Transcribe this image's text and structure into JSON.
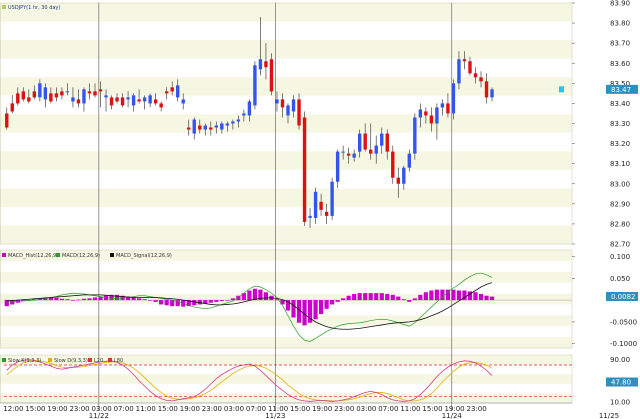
{
  "window": {
    "panels": {
      "price": {
        "legend": "USDJPY(1 hr, 30 day)"
      },
      "macd": {
        "legends": [
          "MACD_Hist(12,26,9)",
          "MACD(12,26,9)",
          "MACD_Signal(12,26,9)"
        ]
      },
      "stoch": {
        "legends": [
          "Slow K(9,3,3)",
          "Slow D(9,3,3)",
          "L20",
          "L80"
        ]
      }
    },
    "bottom_left": "12:00"
  },
  "chart_data": [
    {
      "type": "candlestick",
      "name": "USDJPY(1 hr, 30 day)",
      "ylim": [
        82.7,
        83.9
      ],
      "yticks": [
        "83.90",
        "83.80",
        "83.70",
        "83.60",
        "83.50",
        "83.40",
        "83.30",
        "83.20",
        "83.10",
        "83.00",
        "82.90",
        "82.80",
        "82.70"
      ],
      "current_label": "83.47",
      "date_labels": [
        {
          "label": "11/22",
          "idx": 17.2
        },
        {
          "label": "11/23",
          "idx": 49.2
        },
        {
          "label": "11/24",
          "idx": 81.2
        },
        {
          "label": "11/25",
          "idx": 109.7
        }
      ],
      "time_labels": [
        "12:00",
        "15:00",
        "19:00",
        "23:00",
        "03:00",
        "07:00",
        "11:00",
        "15:00",
        "19:00",
        "23:00",
        "03:00",
        "07:00",
        "11:00",
        "15:00",
        "19:00",
        "23:00",
        "03:00",
        "07:00",
        "11:00",
        "15:00",
        "19:00",
        "23:00"
      ],
      "candles": [
        [
          83.35,
          83.38,
          83.27,
          83.28
        ],
        [
          83.4,
          83.44,
          83.35,
          83.36
        ],
        [
          83.45,
          83.48,
          83.39,
          83.4
        ],
        [
          83.46,
          83.48,
          83.41,
          83.42
        ],
        [
          83.43,
          83.47,
          83.4,
          83.41
        ],
        [
          83.46,
          83.49,
          83.42,
          83.43
        ],
        [
          83.43,
          83.52,
          83.41,
          83.5
        ],
        [
          83.42,
          83.5,
          83.38,
          83.48
        ],
        [
          83.45,
          83.48,
          83.4,
          83.41
        ],
        [
          83.45,
          83.48,
          83.41,
          83.43
        ],
        [
          83.46,
          83.48,
          83.42,
          83.44
        ],
        [
          83.46,
          83.5,
          83.44,
          83.46
        ],
        [
          83.41,
          83.48,
          83.38,
          83.43
        ],
        [
          83.42,
          83.47,
          83.38,
          83.4
        ],
        [
          83.4,
          83.48,
          83.36,
          83.47
        ],
        [
          83.46,
          83.5,
          83.42,
          83.45
        ],
        [
          83.46,
          83.5,
          83.43,
          83.44
        ],
        [
          83.47,
          83.51,
          83.38,
          83.46
        ],
        [
          83.43,
          83.47,
          83.36,
          83.44
        ],
        [
          83.43,
          83.44,
          83.37,
          83.39
        ],
        [
          83.43,
          83.45,
          83.4,
          83.41
        ],
        [
          83.43,
          83.45,
          83.38,
          83.39
        ],
        [
          83.42,
          83.46,
          83.38,
          83.43
        ],
        [
          83.39,
          83.45,
          83.36,
          83.44
        ],
        [
          83.42,
          83.47,
          83.4,
          83.41
        ],
        [
          83.41,
          83.44,
          83.37,
          83.43
        ],
        [
          83.4,
          83.45,
          83.38,
          83.44
        ],
        [
          83.42,
          83.45,
          83.39,
          83.4
        ],
        [
          83.4,
          83.41,
          83.36,
          83.38
        ],
        [
          83.46,
          83.48,
          83.42,
          83.45
        ],
        [
          83.48,
          83.51,
          83.44,
          83.46
        ],
        [
          83.43,
          83.52,
          83.41,
          83.49
        ],
        [
          83.4,
          83.45,
          83.37,
          83.42
        ],
        [
          83.28,
          83.32,
          83.24,
          83.27
        ],
        [
          83.25,
          83.33,
          83.22,
          83.32
        ],
        [
          83.29,
          83.32,
          83.25,
          83.27
        ],
        [
          83.27,
          83.3,
          83.24,
          83.29
        ],
        [
          83.28,
          83.31,
          83.24,
          83.27
        ],
        [
          83.28,
          83.31,
          83.25,
          83.29
        ],
        [
          83.27,
          83.31,
          83.25,
          83.3
        ],
        [
          83.29,
          83.31,
          83.26,
          83.3
        ],
        [
          83.3,
          83.32,
          83.27,
          83.31
        ],
        [
          83.31,
          83.34,
          83.28,
          83.32
        ],
        [
          83.34,
          83.37,
          83.31,
          83.35
        ],
        [
          83.34,
          83.42,
          83.31,
          83.41
        ],
        [
          83.39,
          83.61,
          83.37,
          83.59
        ],
        [
          83.57,
          83.83,
          83.54,
          83.62
        ],
        [
          83.61,
          83.7,
          83.52,
          83.58
        ],
        [
          83.62,
          83.65,
          83.44,
          83.46
        ],
        [
          83.4,
          83.46,
          83.36,
          83.42
        ],
        [
          83.42,
          83.45,
          83.33,
          83.38
        ],
        [
          83.34,
          83.4,
          83.3,
          83.39
        ],
        [
          83.36,
          83.44,
          83.33,
          83.42
        ],
        [
          83.42,
          83.45,
          83.27,
          83.29
        ],
        [
          83.33,
          83.36,
          82.79,
          82.81
        ],
        [
          82.83,
          82.88,
          82.78,
          82.84
        ],
        [
          82.83,
          82.98,
          82.8,
          82.96
        ],
        [
          82.91,
          82.95,
          82.84,
          82.87
        ],
        [
          82.86,
          82.9,
          82.8,
          82.84
        ],
        [
          82.84,
          83.03,
          82.82,
          83.01
        ],
        [
          83.01,
          83.17,
          82.98,
          83.16
        ],
        [
          83.16,
          83.19,
          83.12,
          83.16
        ],
        [
          83.15,
          83.18,
          83.1,
          83.14
        ],
        [
          83.13,
          83.17,
          83.11,
          83.15
        ],
        [
          83.16,
          83.27,
          83.13,
          83.25
        ],
        [
          83.25,
          83.3,
          83.16,
          83.17
        ],
        [
          83.17,
          83.3,
          83.12,
          83.15
        ],
        [
          83.15,
          83.24,
          83.1,
          83.19
        ],
        [
          83.19,
          83.28,
          83.15,
          83.25
        ],
        [
          83.25,
          83.27,
          83.12,
          83.16
        ],
        [
          83.16,
          83.19,
          83.0,
          83.03
        ],
        [
          83.03,
          83.08,
          82.93,
          83.0
        ],
        [
          83.0,
          83.09,
          82.97,
          83.08
        ],
        [
          83.08,
          83.17,
          83.06,
          83.15
        ],
        [
          83.15,
          83.35,
          83.12,
          83.33
        ],
        [
          83.33,
          83.4,
          83.28,
          83.37
        ],
        [
          83.36,
          83.38,
          83.3,
          83.34
        ],
        [
          83.34,
          83.38,
          83.26,
          83.3
        ],
        [
          83.3,
          83.4,
          83.22,
          83.38
        ],
        [
          83.38,
          83.42,
          83.34,
          83.4
        ],
        [
          83.4,
          83.45,
          83.33,
          83.35
        ],
        [
          83.35,
          83.52,
          83.32,
          83.5
        ],
        [
          83.5,
          83.66,
          83.47,
          83.62
        ],
        [
          83.62,
          83.66,
          83.57,
          83.61
        ],
        [
          83.61,
          83.63,
          83.54,
          83.55
        ],
        [
          83.55,
          83.58,
          83.5,
          83.53
        ],
        [
          83.53,
          83.56,
          83.48,
          83.51
        ],
        [
          83.51,
          83.55,
          83.4,
          83.43
        ],
        [
          83.43,
          83.48,
          83.41,
          83.47
        ]
      ]
    },
    {
      "type": "bar+line",
      "name": "MACD",
      "ylim": [
        -0.11,
        0.115
      ],
      "yticks": [
        "0.100",
        "0.050",
        "0.0082",
        "-0.0500",
        "-0.1000"
      ],
      "histogram": [
        -0.014,
        -0.01,
        -0.006,
        -0.002,
        0.0,
        0.002,
        0.004,
        0.006,
        0.006,
        0.005,
        0.003,
        0.002,
        0.0,
        0.001,
        0.003,
        0.004,
        0.006,
        0.008,
        0.01,
        0.012,
        0.012,
        0.01,
        0.008,
        0.006,
        0.004,
        0.002,
        0.0,
        -0.004,
        -0.01,
        -0.012,
        -0.014,
        -0.014,
        -0.015,
        -0.014,
        -0.012,
        -0.01,
        -0.008,
        -0.006,
        -0.004,
        -0.002,
        0.0,
        0.004,
        0.01,
        0.016,
        0.022,
        0.026,
        0.024,
        0.018,
        0.01,
        0.002,
        -0.01,
        -0.024,
        -0.04,
        -0.052,
        -0.058,
        -0.052,
        -0.044,
        -0.032,
        -0.02,
        -0.01,
        -0.004,
        0.004,
        0.01,
        0.014,
        0.016,
        0.016,
        0.016,
        0.016,
        0.016,
        0.014,
        0.012,
        0.008,
        0.002,
        -0.004,
        0.004,
        0.012,
        0.018,
        0.022,
        0.024,
        0.024,
        0.024,
        0.024,
        0.022,
        0.022,
        0.02,
        0.018,
        0.014,
        0.01,
        0.008
      ],
      "macd": [
        -0.005,
        -0.004,
        -0.003,
        -0.002,
        -0.001,
        0.0,
        0.002,
        0.004,
        0.006,
        0.008,
        0.012,
        0.014,
        0.016,
        0.015,
        0.014,
        0.012,
        0.01,
        0.008,
        0.006,
        0.004,
        0.004,
        0.005,
        0.006,
        0.008,
        0.01,
        0.01,
        0.008,
        0.006,
        0.004,
        0.002,
        0.0,
        -0.004,
        -0.008,
        -0.012,
        -0.016,
        -0.018,
        -0.02,
        -0.018,
        -0.014,
        -0.01,
        -0.006,
        -0.002,
        0.006,
        0.016,
        0.026,
        0.032,
        0.03,
        0.024,
        0.016,
        0.006,
        -0.012,
        -0.036,
        -0.06,
        -0.08,
        -0.092,
        -0.095,
        -0.088,
        -0.08,
        -0.072,
        -0.066,
        -0.06,
        -0.056,
        -0.054,
        -0.053,
        -0.052,
        -0.05,
        -0.047,
        -0.045,
        -0.044,
        -0.045,
        -0.048,
        -0.052,
        -0.056,
        -0.06,
        -0.052,
        -0.04,
        -0.028,
        -0.016,
        -0.004,
        0.008,
        0.018,
        0.028,
        0.036,
        0.046,
        0.054,
        0.06,
        0.062,
        0.058,
        0.052
      ],
      "signal": [
        -0.002,
        -0.001,
        0.0,
        0.001,
        0.002,
        0.003,
        0.004,
        0.005,
        0.006,
        0.007,
        0.008,
        0.009,
        0.01,
        0.011,
        0.012,
        0.012,
        0.012,
        0.012,
        0.011,
        0.01,
        0.009,
        0.008,
        0.007,
        0.006,
        0.006,
        0.006,
        0.006,
        0.006,
        0.005,
        0.004,
        0.003,
        0.002,
        0.0,
        -0.002,
        -0.004,
        -0.006,
        -0.008,
        -0.01,
        -0.011,
        -0.011,
        -0.01,
        -0.009,
        -0.007,
        -0.004,
        -0.001,
        0.002,
        0.004,
        0.005,
        0.005,
        0.004,
        0.001,
        -0.004,
        -0.012,
        -0.022,
        -0.032,
        -0.042,
        -0.05,
        -0.056,
        -0.061,
        -0.064,
        -0.066,
        -0.067,
        -0.067,
        -0.066,
        -0.065,
        -0.063,
        -0.061,
        -0.059,
        -0.057,
        -0.055,
        -0.053,
        -0.052,
        -0.051,
        -0.05,
        -0.048,
        -0.045,
        -0.041,
        -0.036,
        -0.031,
        -0.025,
        -0.018,
        -0.01,
        -0.002,
        0.006,
        0.014,
        0.022,
        0.03,
        0.036,
        0.04
      ]
    },
    {
      "type": "line",
      "name": "Stochastic",
      "ylim": [
        8,
        99
      ],
      "yticks": [
        "90.00",
        "47.80",
        "10.00"
      ],
      "levels": [
        20,
        80
      ],
      "slowk": [
        70,
        80,
        86,
        89,
        90,
        89,
        86,
        82,
        78,
        74,
        72,
        74,
        76,
        78,
        80,
        82,
        84,
        86,
        87,
        88,
        85,
        80,
        72,
        62,
        50,
        40,
        30,
        22,
        16,
        13,
        12,
        14,
        16,
        18,
        20,
        26,
        34,
        44,
        54,
        62,
        68,
        74,
        78,
        80,
        82,
        78,
        70,
        60,
        50,
        40,
        32,
        24,
        18,
        14,
        12,
        11,
        12,
        13,
        12,
        11,
        12,
        14,
        16,
        20,
        24,
        28,
        30,
        28,
        24,
        18,
        14,
        12,
        11,
        12,
        16,
        24,
        34,
        46,
        58,
        68,
        76,
        82,
        86,
        88,
        87,
        84,
        78,
        70,
        60
      ],
      "slowd": [
        62,
        70,
        78,
        84,
        87,
        88,
        88,
        86,
        83,
        79,
        76,
        75,
        75,
        76,
        77,
        79,
        81,
        83,
        85,
        86,
        86,
        84,
        80,
        74,
        66,
        56,
        46,
        36,
        28,
        21,
        17,
        15,
        15,
        16,
        18,
        21,
        26,
        32,
        40,
        48,
        56,
        64,
        70,
        75,
        78,
        79,
        78,
        74,
        68,
        60,
        52,
        42,
        34,
        26,
        20,
        16,
        14,
        13,
        13,
        12,
        12,
        13,
        14,
        16,
        19,
        23,
        26,
        28,
        28,
        26,
        22,
        18,
        14,
        12,
        12,
        14,
        18,
        26,
        36,
        48,
        58,
        68,
        76,
        82,
        84,
        85,
        83,
        80,
        74
      ]
    }
  ]
}
